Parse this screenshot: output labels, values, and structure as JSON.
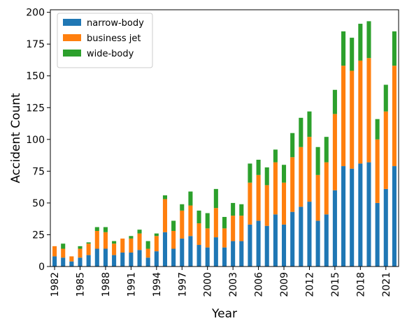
{
  "chart_data": {
    "type": "bar",
    "stacked": true,
    "title": "",
    "xlabel": "Year",
    "ylabel": "Accident Count",
    "ylim": [
      0,
      202
    ],
    "yticks": [
      0,
      25,
      50,
      75,
      100,
      125,
      150,
      175,
      200
    ],
    "xtick_labels": [
      "1982",
      "1985",
      "1988",
      "1991",
      "1994",
      "1997",
      "2000",
      "2003",
      "2006",
      "2009",
      "2012",
      "2015",
      "2018",
      "2021"
    ],
    "grid": false,
    "legend_position": "top-left",
    "categories": [
      "1982",
      "1983",
      "1984",
      "1985",
      "1986",
      "1987",
      "1988",
      "1989",
      "1990",
      "1991",
      "1992",
      "1993",
      "1994",
      "1995",
      "1996",
      "1997",
      "1998",
      "1999",
      "2000",
      "2001",
      "2002",
      "2003",
      "2004",
      "2005",
      "2006",
      "2007",
      "2008",
      "2009",
      "2010",
      "2011",
      "2012",
      "2013",
      "2014",
      "2015",
      "2016",
      "2017",
      "2018",
      "2019",
      "2020",
      "2021",
      "2022"
    ],
    "series": [
      {
        "name": "narrow-body",
        "color": "#1f77b4",
        "values": [
          8,
          7,
          4,
          7,
          9,
          14,
          14,
          9,
          11,
          11,
          13,
          7,
          12,
          27,
          14,
          22,
          24,
          17,
          15,
          23,
          15,
          20,
          20,
          33,
          36,
          32,
          41,
          33,
          43,
          47,
          51,
          36,
          41,
          60,
          79,
          77,
          81,
          82,
          50,
          61,
          79
        ]
      },
      {
        "name": "business jet",
        "color": "#ff7f0e",
        "values": [
          8,
          7,
          4,
          7,
          9,
          14,
          13,
          9,
          11,
          11,
          13,
          7,
          12,
          26,
          14,
          22,
          24,
          17,
          15,
          23,
          15,
          20,
          20,
          33,
          36,
          32,
          41,
          33,
          43,
          47,
          51,
          36,
          41,
          60,
          79,
          77,
          81,
          82,
          50,
          61,
          79
        ]
      },
      {
        "name": "wide-body",
        "color": "#2ca02c",
        "values": [
          0,
          4,
          0,
          2,
          1,
          3,
          4,
          2,
          0,
          2,
          3,
          6,
          2,
          3,
          8,
          5,
          11,
          10,
          12,
          15,
          9,
          10,
          9,
          15,
          12,
          14,
          10,
          14,
          19,
          23,
          20,
          22,
          20,
          19,
          27,
          26,
          29,
          29,
          16,
          21,
          27
        ]
      }
    ]
  }
}
